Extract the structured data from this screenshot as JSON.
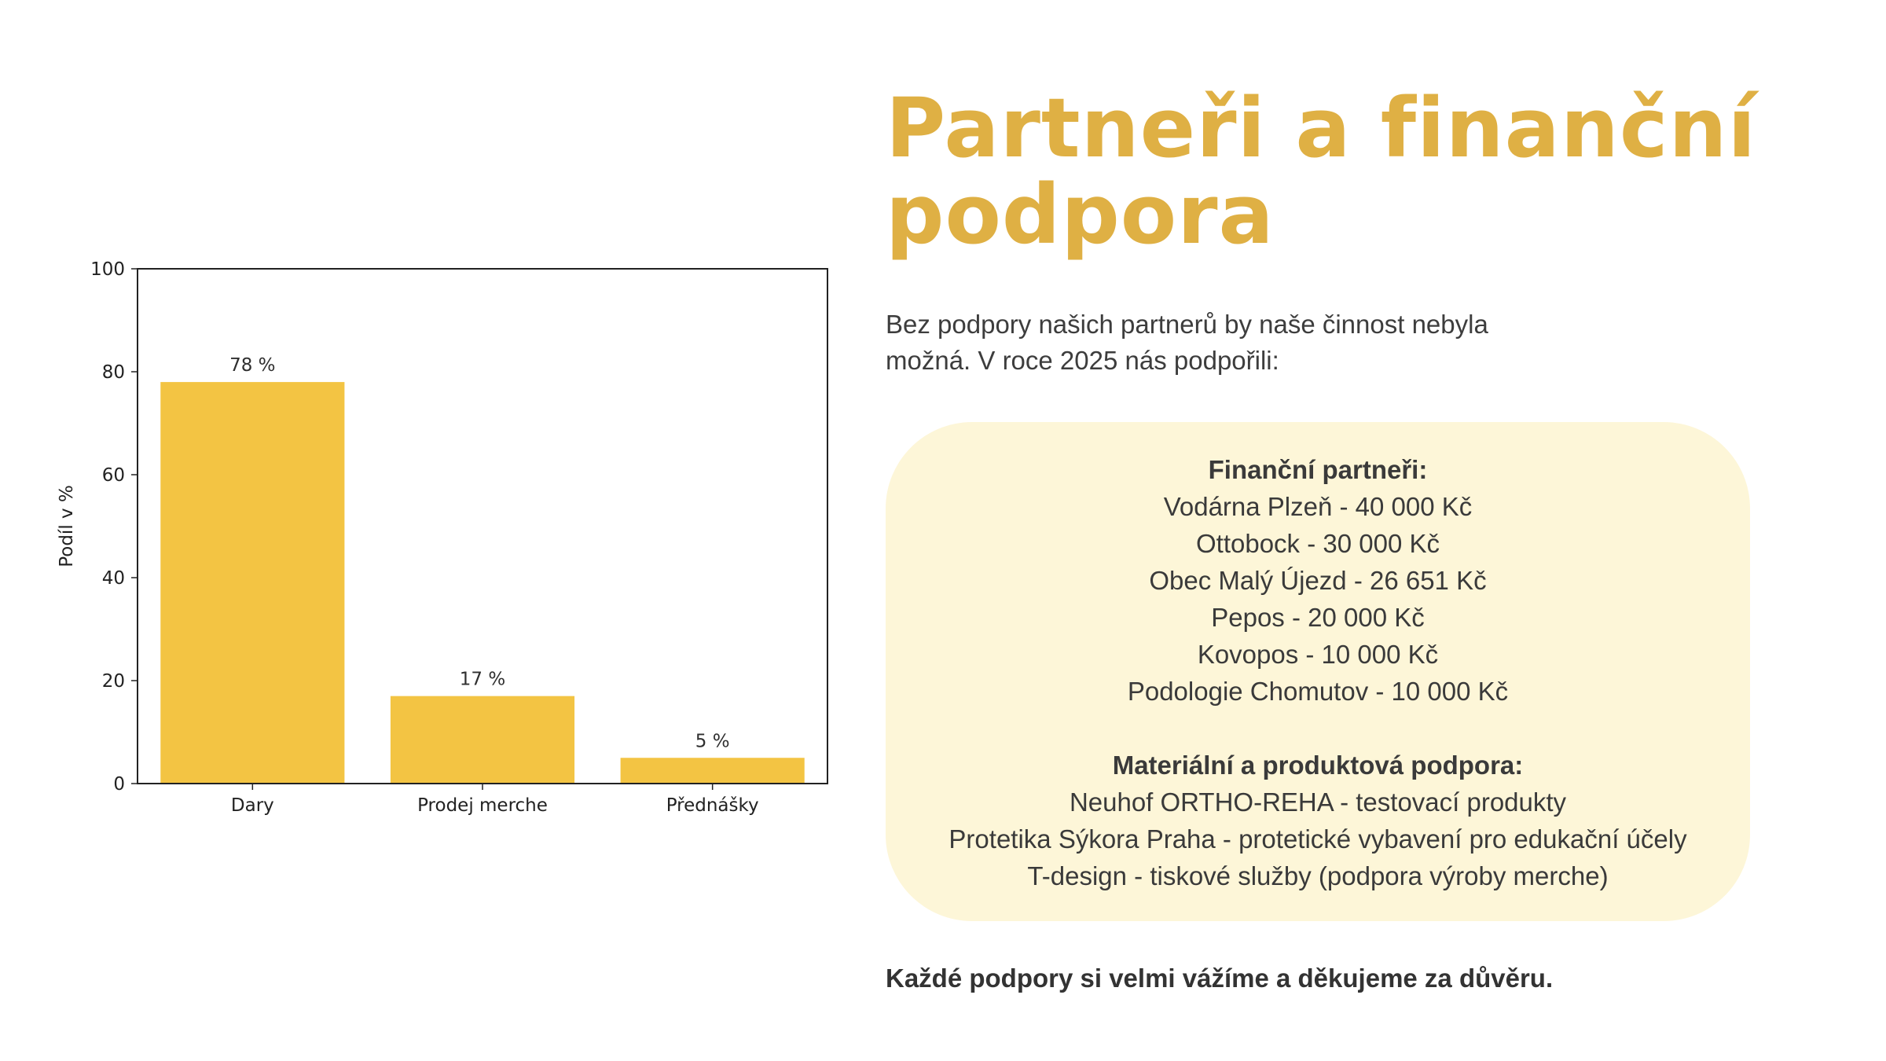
{
  "colors": {
    "accent": "#dfb044",
    "bar": "#f3c443",
    "box": "#fdf6d8",
    "text": "#3a3a3a"
  },
  "title": "Partneři a finanční podpora",
  "intro": "Bez podpory našich partnerů by naše činnost nebyla možná. V roce 2025 nás podpořili:",
  "financial": {
    "heading": "Finanční partneři:",
    "items": [
      "Vodárna Plzeň - 40 000 Kč",
      "Ottobock - 30 000 Kč",
      "Obec Malý Újezd - 26 651 Kč",
      "Pepos - 20 000 Kč",
      "Kovopos - 10 000 Kč",
      "Podologie Chomutov - 10 000 Kč"
    ]
  },
  "material": {
    "heading": "Materiální a produktová podpora:",
    "items": [
      "Neuhof ORTHO-REHA - testovací produkty",
      "Protetika Sýkora Praha - protetické vybavení pro edukační účely",
      "T-design - tiskové služby (podpora výroby merche)"
    ]
  },
  "thanks": "Každé podpory si velmi vážíme a děkujeme za důvěru.",
  "chart_data": {
    "type": "bar",
    "categories": [
      "Dary",
      "Prodej merche",
      "Přednášky"
    ],
    "values": [
      78,
      17,
      5
    ],
    "labels": [
      "78 %",
      "17 %",
      "5 %"
    ],
    "title": "",
    "xlabel": "",
    "ylabel": "Podíl v %",
    "ylim": [
      0,
      100
    ],
    "yticks": [
      0,
      20,
      40,
      60,
      80,
      100
    ],
    "grid": false
  }
}
